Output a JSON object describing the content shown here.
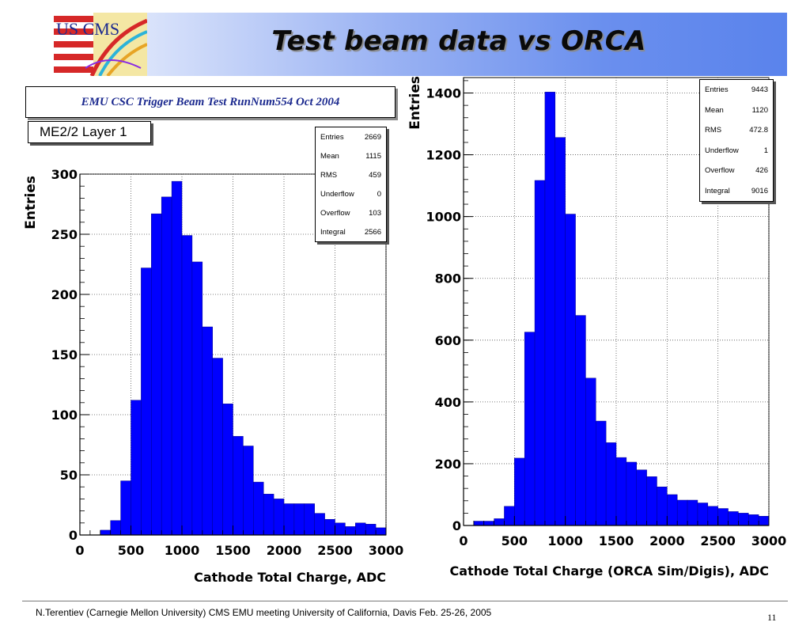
{
  "slide": {
    "title": "Test beam data vs ORCA",
    "logo_text": "US CMS",
    "footer": "N.Terentiev  (Carnegie Mellon University)  CMS EMU meeting  University of California, Davis Feb. 25-26, 2005",
    "page_number": "11",
    "colors": {
      "title_bar_start": "#ffffff",
      "title_bar_end": "#5a83ec",
      "bar_fill": "#0000ff",
      "run_text": "#1c2a8f"
    }
  },
  "left_panel": {
    "run_title": "EMU CSC Trigger Beam Test RunNum554 Oct 2004",
    "layer_label": "ME2/2 Layer 1",
    "stats": [
      {
        "label": "Entries",
        "value": "2669"
      },
      {
        "label": "Mean",
        "value": "1115"
      },
      {
        "label": "RMS",
        "value": "459"
      },
      {
        "label": "Underflow",
        "value": "0"
      },
      {
        "label": "Overflow",
        "value": "103"
      },
      {
        "label": "Integral",
        "value": "2566"
      }
    ]
  },
  "right_panel": {
    "stats": [
      {
        "label": "Entries",
        "value": "9443"
      },
      {
        "label": "Mean",
        "value": "1120"
      },
      {
        "label": "RMS",
        "value": "472.8"
      },
      {
        "label": "Underflow",
        "value": "1"
      },
      {
        "label": "Overflow",
        "value": "426"
      },
      {
        "label": "Integral",
        "value": "9016"
      }
    ]
  },
  "chart_data": [
    {
      "type": "bar",
      "title": "",
      "xlabel": "Cathode Total Charge, ADC",
      "ylabel": "Entries",
      "xlim": [
        0,
        3000
      ],
      "ylim": [
        0,
        300
      ],
      "grid": true,
      "bar_color": "#0000ff",
      "bin_width": 100,
      "x_ticks": [
        0,
        500,
        1000,
        1500,
        2000,
        2500,
        3000
      ],
      "y_ticks": [
        0,
        50,
        100,
        150,
        200,
        250,
        300
      ],
      "x_tick_labels": [
        "0",
        "500",
        "1000",
        "1500",
        "2000",
        "2500",
        "3000"
      ],
      "y_tick_labels": [
        "0",
        "50",
        "100",
        "150",
        "200",
        "250",
        "300"
      ],
      "bin_edges_start": [
        200,
        300,
        400,
        500,
        600,
        700,
        800,
        900,
        1000,
        1100,
        1200,
        1300,
        1400,
        1500,
        1600,
        1700,
        1800,
        1900,
        2000,
        2100,
        2200,
        2300,
        2400,
        2500,
        2600,
        2700,
        2800,
        2900
      ],
      "values": [
        4,
        12,
        45,
        112,
        222,
        267,
        281,
        294,
        249,
        227,
        173,
        147,
        109,
        82,
        74,
        44,
        34,
        30,
        26,
        26,
        26,
        18,
        13,
        10,
        7,
        10,
        9,
        6
      ]
    },
    {
      "type": "bar",
      "title": "",
      "xlabel": "Cathode Total Charge (ORCA Sim/Digis), ADC",
      "ylabel": "Entries",
      "xlim": [
        0,
        3000
      ],
      "ylim": [
        0,
        1450
      ],
      "grid": true,
      "bar_color": "#0000ff",
      "bin_width": 100,
      "x_ticks": [
        0,
        500,
        1000,
        1500,
        2000,
        2500,
        3000
      ],
      "y_ticks": [
        0,
        200,
        400,
        600,
        800,
        1000,
        1200,
        1400
      ],
      "x_tick_labels": [
        "0",
        "500",
        "1000",
        "1500",
        "2000",
        "2500",
        "3000"
      ],
      "y_tick_labels": [
        "0",
        "200",
        "400",
        "600",
        "800",
        "1000",
        "1200",
        "1400"
      ],
      "bin_edges_start": [
        100,
        200,
        300,
        400,
        500,
        600,
        700,
        800,
        900,
        1000,
        1100,
        1200,
        1300,
        1400,
        1500,
        1600,
        1700,
        1800,
        1900,
        2000,
        2100,
        2200,
        2300,
        2400,
        2500,
        2600,
        2700,
        2800,
        2900
      ],
      "values": [
        14,
        14,
        22,
        62,
        218,
        626,
        1117,
        1403,
        1256,
        1008,
        680,
        477,
        338,
        268,
        220,
        205,
        180,
        158,
        125,
        100,
        82,
        82,
        73,
        62,
        55,
        45,
        40,
        35,
        30
      ]
    }
  ]
}
